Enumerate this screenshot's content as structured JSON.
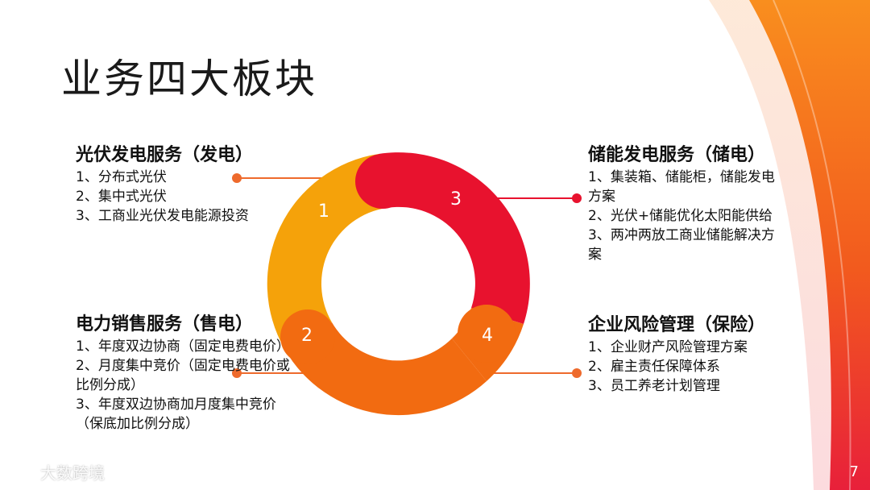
{
  "title": "业务四大板块",
  "colors": {
    "yellow": "#F5A20A",
    "red": "#E8122E",
    "orange": "#F26B11",
    "accent_line": "#EE6A2C",
    "text": "#111111"
  },
  "ring_labels": [
    "1",
    "3",
    "2",
    "4"
  ],
  "blocks": {
    "top_left": {
      "heading": "光伏发电服务（发电）",
      "items": [
        "1、分布式光伏",
        "2、集中式光伏",
        "3、工商业光伏发电能源投资"
      ]
    },
    "bottom_left": {
      "heading": "电力销售服务（售电）",
      "items": [
        "1、年度双边协商（固定电费电价）",
        "2、月度集中竞价（固定电费电价或比例分成）",
        "3、年度双边协商加月度集中竞价（保底加比例分成）"
      ]
    },
    "top_right": {
      "heading": "储能发电服务（储电）",
      "items": [
        "1、集装箱、储能柜，储能发电方案",
        "2、光伏+储能优化太阳能供给",
        "3、两冲两放工商业储能解决方案"
      ]
    },
    "bottom_right": {
      "heading": "企业风险管理（保险）",
      "items": [
        "1、企业财产风险管理方案",
        "2、雇主责任保障体系",
        "3、员工养老计划管理"
      ]
    }
  },
  "page_number": "7",
  "watermark": "大数跨境",
  "watermark_icon": "logo-icon"
}
